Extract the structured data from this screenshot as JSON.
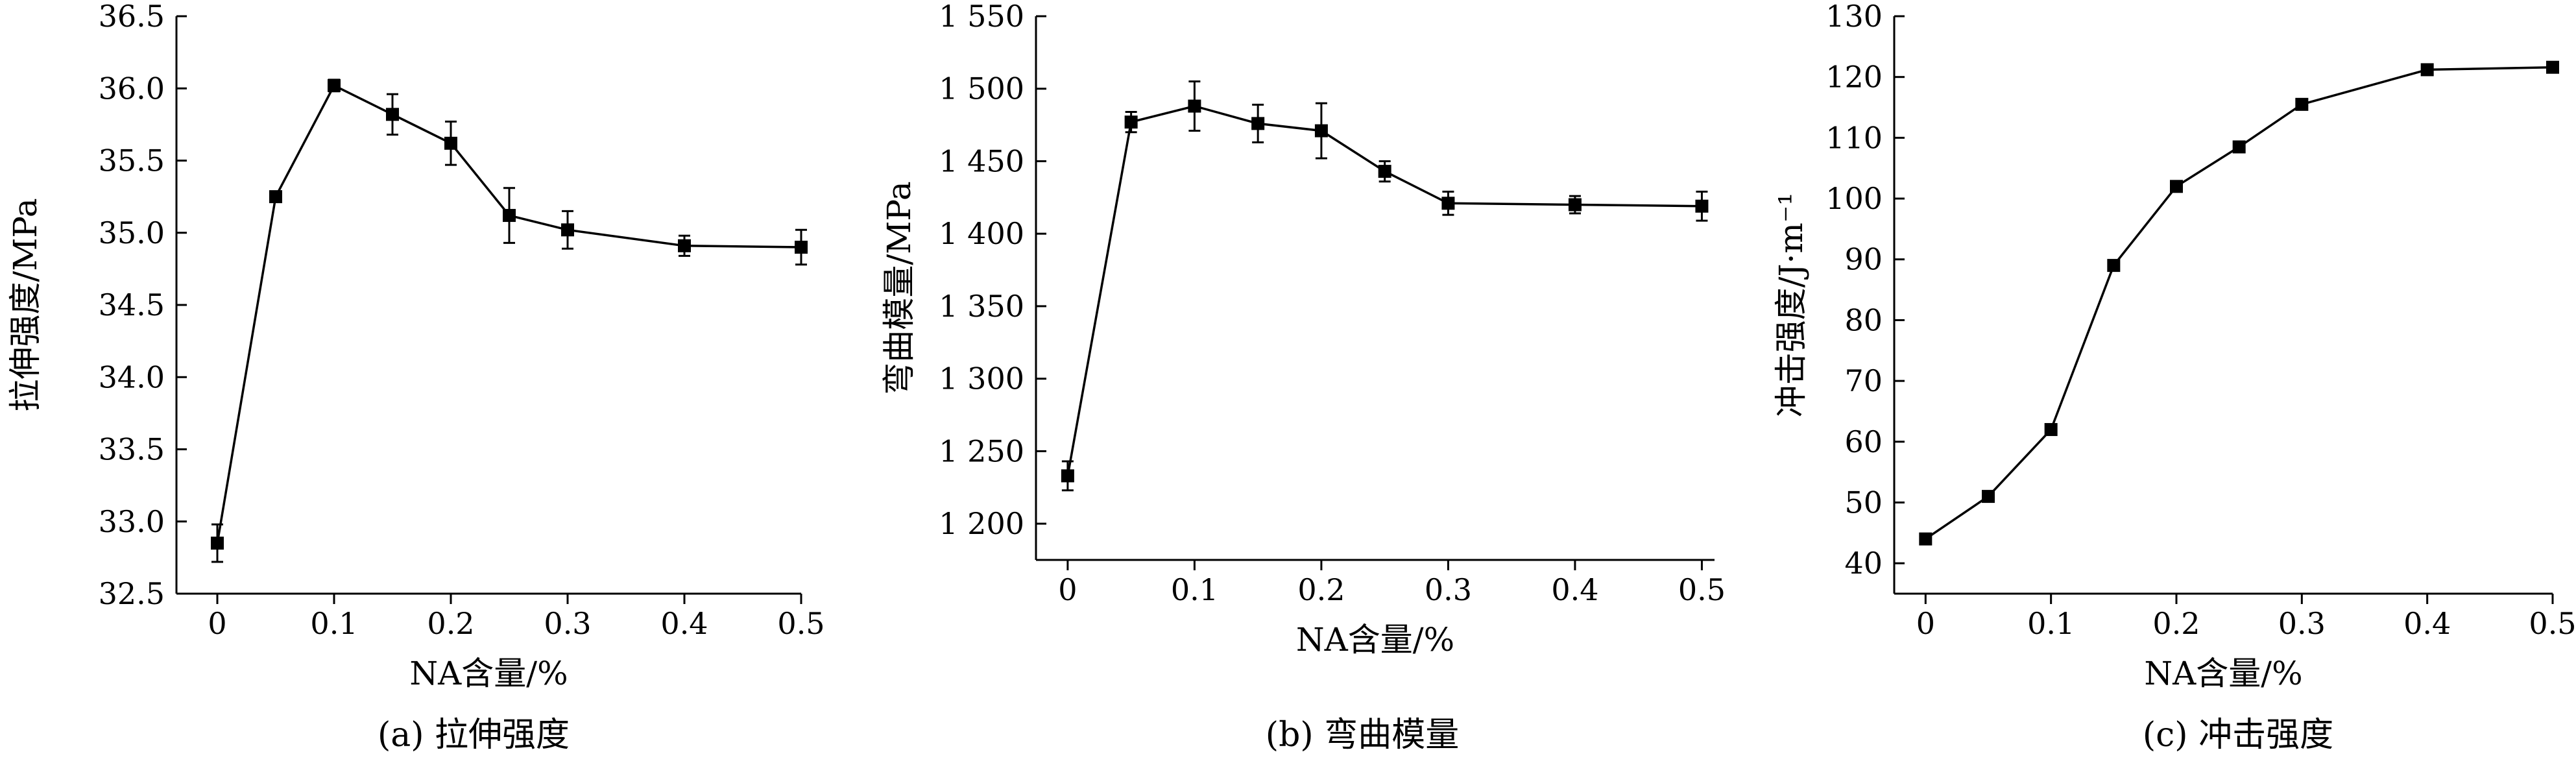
{
  "chart_data": [
    {
      "type": "line",
      "caption": "(a) 拉伸强度",
      "xlabel": "NA含量/%",
      "ylabel": "拉伸强度/MPa",
      "xlim": [
        -0.035,
        0.5
      ],
      "ylim": [
        32.5,
        36.5
      ],
      "xticks": [
        0,
        0.1,
        0.2,
        0.3,
        0.4,
        0.5
      ],
      "xtick_labels": [
        "0",
        "0.1",
        "0.2",
        "0.3",
        "0.4",
        "0.5"
      ],
      "yticks": [
        32.5,
        33.0,
        33.5,
        34.0,
        34.5,
        35.0,
        35.5,
        36.0,
        36.5
      ],
      "ytick_labels": [
        "32.5",
        "33.0",
        "33.5",
        "34.0",
        "34.5",
        "35.0",
        "35.5",
        "36.0",
        "36.5"
      ],
      "x": [
        0,
        0.05,
        0.1,
        0.15,
        0.2,
        0.25,
        0.3,
        0.4,
        0.5
      ],
      "y": [
        32.85,
        35.25,
        36.02,
        35.82,
        35.62,
        35.12,
        35.02,
        34.91,
        34.9
      ],
      "err": [
        0.13,
        0.02,
        0.04,
        0.14,
        0.15,
        0.19,
        0.13,
        0.07,
        0.12
      ]
    },
    {
      "type": "line",
      "caption": "(b) 弯曲模量",
      "xlabel": "NA含量/%",
      "ylabel": "弯曲模量/MPa",
      "xlim": [
        -0.025,
        0.51
      ],
      "ylim": [
        1175,
        1550
      ],
      "xticks": [
        0,
        0.1,
        0.2,
        0.3,
        0.4,
        0.5
      ],
      "xtick_labels": [
        "0",
        "0.1",
        "0.2",
        "0.3",
        "0.4",
        "0.5"
      ],
      "yticks": [
        1200,
        1250,
        1300,
        1350,
        1400,
        1450,
        1500,
        1550
      ],
      "ytick_labels": [
        "1 200",
        "1 250",
        "1 300",
        "1 350",
        "1 400",
        "1 450",
        "1 500",
        "1 550"
      ],
      "x": [
        0,
        0.05,
        0.1,
        0.15,
        0.2,
        0.25,
        0.3,
        0.4,
        0.5
      ],
      "y": [
        1233,
        1477,
        1488,
        1476,
        1471,
        1443,
        1421,
        1420,
        1419
      ],
      "err": [
        10,
        7,
        17,
        13,
        19,
        7,
        8,
        6,
        10
      ]
    },
    {
      "type": "line",
      "caption": "(c) 冲击强度",
      "xlabel": "NA含量/%",
      "ylabel": "冲击强度/J·m⁻¹",
      "xlim": [
        -0.025,
        0.5
      ],
      "ylim": [
        35,
        130
      ],
      "xticks": [
        0,
        0.1,
        0.2,
        0.3,
        0.4,
        0.5
      ],
      "xtick_labels": [
        "0",
        "0.1",
        "0.2",
        "0.3",
        "0.4",
        "0.5"
      ],
      "yticks": [
        40,
        50,
        60,
        70,
        80,
        90,
        100,
        110,
        120,
        130
      ],
      "ytick_labels": [
        "40",
        "50",
        "60",
        "70",
        "80",
        "90",
        "100",
        "110",
        "120",
        "130"
      ],
      "x": [
        0,
        0.05,
        0.1,
        0.15,
        0.2,
        0.25,
        0.3,
        0.4,
        0.5
      ],
      "y": [
        44,
        51,
        62,
        89,
        102,
        108.5,
        115.5,
        121.2,
        121.6
      ],
      "err": [
        0,
        0,
        0,
        0,
        0,
        0,
        0,
        0,
        0
      ]
    }
  ]
}
